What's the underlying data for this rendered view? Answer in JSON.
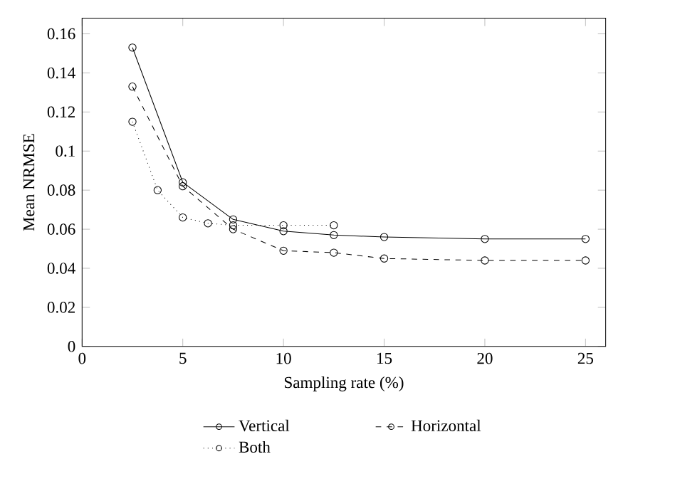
{
  "chart_data": {
    "type": "line",
    "xlabel": "Sampling rate (%)",
    "ylabel": "Mean NRMSE",
    "xlim": [
      0,
      26
    ],
    "ylim": [
      0,
      0.168
    ],
    "xticks": [
      0,
      5,
      10,
      15,
      20,
      25
    ],
    "yticks": [
      0,
      0.02,
      0.04,
      0.06,
      0.08,
      {
        "value": 0.1,
        "label": "0.1"
      },
      0.12,
      0.14,
      0.16
    ],
    "marker": "circle",
    "legend": "bottom",
    "grid": false,
    "series": [
      {
        "name": "Vertical",
        "color": "#000000",
        "line_style": "solid",
        "x": [
          2.5,
          5,
          7.5,
          10,
          12.5,
          15,
          20,
          25
        ],
        "values": [
          0.153,
          0.084,
          0.065,
          0.059,
          0.057,
          0.056,
          0.055,
          0.055
        ]
      },
      {
        "name": "Horizontal",
        "color": "#000000",
        "line_style": "dashed",
        "x": [
          2.5,
          5,
          7.5,
          10,
          12.5,
          15,
          20,
          25
        ],
        "values": [
          0.133,
          0.082,
          0.06,
          0.049,
          0.048,
          0.045,
          0.044,
          0.044
        ]
      },
      {
        "name": "Both",
        "color": "#000000",
        "line_style": "dotted",
        "x": [
          2.5,
          3.75,
          5,
          6.25,
          7.5,
          10,
          12.5
        ],
        "values": [
          0.115,
          0.08,
          0.066,
          0.063,
          0.062,
          0.062,
          0.062
        ]
      }
    ]
  }
}
